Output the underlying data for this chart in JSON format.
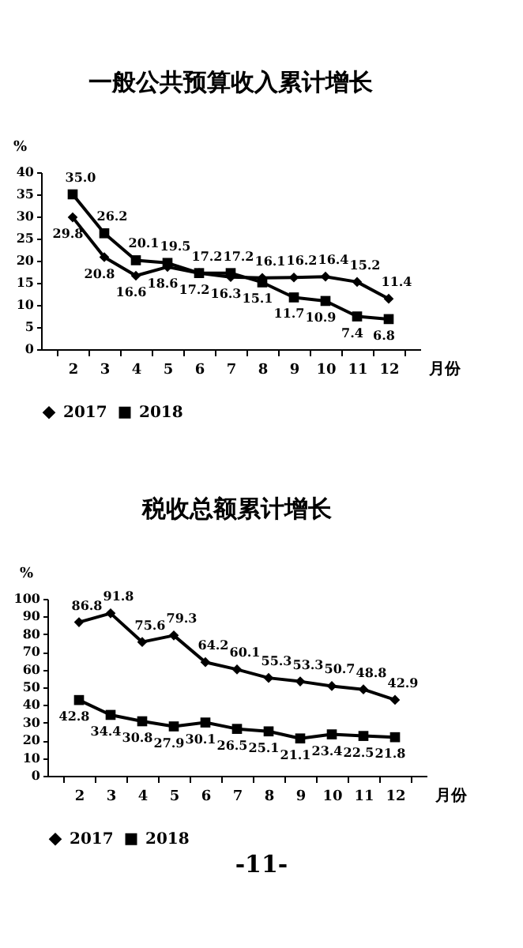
{
  "chart_data": [
    {
      "type": "line",
      "title": "一般公共预算收入累计增长",
      "ylabel": "%",
      "xlabel": "月份",
      "categories": [
        "2",
        "3",
        "4",
        "5",
        "6",
        "7",
        "8",
        "9",
        "10",
        "11",
        "12"
      ],
      "ylim": [
        0,
        40
      ],
      "yticks": [
        0,
        5,
        10,
        15,
        20,
        25,
        30,
        35,
        40
      ],
      "grid": false,
      "legend": "bottom",
      "series": [
        {
          "name": "2017",
          "color": "#000000",
          "marker": "diamond",
          "values": [
            29.8,
            20.8,
            16.6,
            18.6,
            17.2,
            16.3,
            16.1,
            16.2,
            16.4,
            15.2,
            11.4
          ],
          "value_labels": [
            "29.8",
            "20.8",
            "16.6",
            "18.6",
            "17.2",
            "16.3",
            "16.1",
            "16.2",
            "16.4",
            "15.2",
            "11.4"
          ]
        },
        {
          "name": "2018",
          "color": "#000000",
          "marker": "square",
          "values": [
            35.0,
            26.2,
            20.1,
            19.5,
            17.2,
            17.2,
            15.1,
            11.7,
            10.9,
            7.4,
            6.8
          ],
          "value_labels": [
            "35.0",
            "26.2",
            "20.1",
            "19.5",
            "17.2",
            "17.2",
            "15.1",
            "11.7",
            "10.9",
            "7.4",
            "6.8"
          ]
        }
      ]
    },
    {
      "type": "line",
      "title": "税收总额累计增长",
      "ylabel": "%",
      "xlabel": "月份",
      "categories": [
        "2",
        "3",
        "4",
        "5",
        "6",
        "7",
        "8",
        "9",
        "10",
        "11",
        "12"
      ],
      "ylim": [
        0,
        100
      ],
      "yticks": [
        0,
        10,
        20,
        30,
        40,
        50,
        60,
        70,
        80,
        90,
        100
      ],
      "grid": false,
      "legend": "bottom",
      "annotations": [
        "-11-"
      ],
      "series": [
        {
          "name": "2017",
          "color": "#000000",
          "marker": "diamond",
          "values": [
            86.8,
            91.8,
            75.6,
            79.3,
            64.2,
            60.1,
            55.3,
            53.3,
            50.7,
            48.8,
            42.9
          ],
          "value_labels": [
            "86.8",
            "91.8",
            "75.6",
            "79.3",
            "64.2",
            "60.1",
            "55.3",
            "53.3",
            "50.7",
            "48.8",
            "42.9"
          ]
        },
        {
          "name": "2018",
          "color": "#000000",
          "marker": "square",
          "values": [
            42.8,
            34.4,
            30.8,
            27.9,
            30.1,
            26.5,
            25.1,
            21.1,
            23.4,
            22.5,
            21.8
          ],
          "value_labels": [
            "42.8",
            "34.4",
            "30.8",
            "27.9",
            "30.1",
            "26.5",
            "25.1",
            "21.1",
            "23.4",
            "22.5",
            "21.8"
          ]
        }
      ]
    }
  ]
}
